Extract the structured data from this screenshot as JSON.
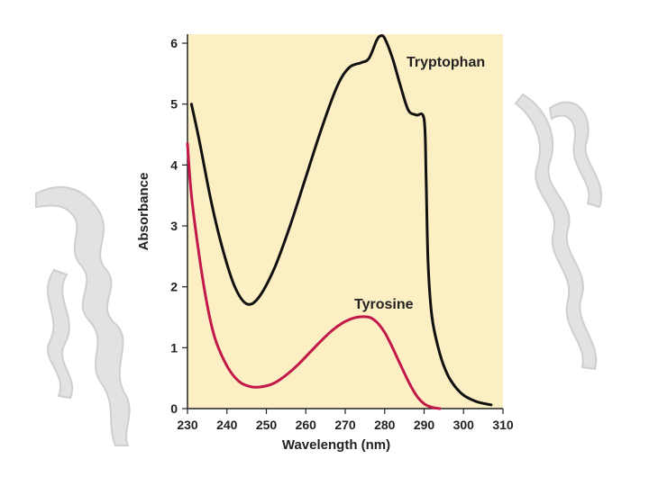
{
  "chart_data": {
    "type": "line",
    "xlabel": "Wavelength (nm)",
    "ylabel": "Absorbance",
    "xlim": [
      230,
      310
    ],
    "ylim": [
      0,
      6.1
    ],
    "xticks": [
      "230",
      "240",
      "250",
      "260",
      "270",
      "280",
      "290",
      "300",
      "310"
    ],
    "yticks": [
      "0",
      "1",
      "2",
      "3",
      "4",
      "5",
      "6"
    ],
    "grid": false,
    "plot_background": "#fbefc3",
    "series": [
      {
        "name": "Tryptophan",
        "color": "#111111",
        "x": [
          231,
          233,
          236,
          239,
          242,
          245,
          248,
          252,
          256,
          260,
          264,
          268,
          271,
          274,
          276,
          278,
          279,
          280,
          282,
          284,
          286,
          288,
          290,
          290.5,
          291,
          292,
          294,
          296,
          298,
          300,
          302,
          304,
          307
        ],
        "y": [
          5.0,
          4.4,
          3.4,
          2.6,
          2.0,
          1.72,
          1.82,
          2.3,
          3.0,
          3.8,
          4.6,
          5.3,
          5.6,
          5.68,
          5.75,
          6.05,
          6.12,
          6.08,
          5.75,
          5.3,
          4.9,
          4.82,
          4.75,
          3.8,
          2.4,
          1.5,
          0.9,
          0.55,
          0.35,
          0.22,
          0.15,
          0.1,
          0.06
        ]
      },
      {
        "name": "Tyrosine",
        "color": "#c2184a",
        "x": [
          230,
          231,
          233,
          235,
          237,
          240,
          243,
          246,
          249,
          252,
          255,
          258,
          261,
          264,
          267,
          270,
          273,
          276,
          278,
          280,
          282,
          284,
          286,
          288,
          290,
          292,
          294
        ],
        "y": [
          4.35,
          3.5,
          2.5,
          1.7,
          1.15,
          0.7,
          0.45,
          0.36,
          0.36,
          0.42,
          0.55,
          0.72,
          0.92,
          1.12,
          1.3,
          1.43,
          1.5,
          1.5,
          1.42,
          1.25,
          1.0,
          0.72,
          0.45,
          0.22,
          0.08,
          0.02,
          0.0
        ]
      }
    ]
  }
}
